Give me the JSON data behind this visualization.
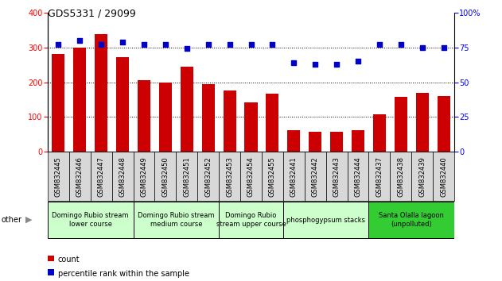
{
  "title": "GDS5331 / 29099",
  "samples": [
    "GSM832445",
    "GSM832446",
    "GSM832447",
    "GSM832448",
    "GSM832449",
    "GSM832450",
    "GSM832451",
    "GSM832452",
    "GSM832453",
    "GSM832454",
    "GSM832455",
    "GSM832441",
    "GSM832442",
    "GSM832443",
    "GSM832444",
    "GSM832437",
    "GSM832438",
    "GSM832439",
    "GSM832440"
  ],
  "counts": [
    280,
    300,
    338,
    272,
    205,
    200,
    245,
    195,
    175,
    143,
    168,
    62,
    58,
    57,
    63,
    108,
    158,
    170,
    160
  ],
  "percentiles": [
    77,
    80,
    77,
    79,
    77,
    77,
    74,
    77,
    77,
    77,
    77,
    64,
    63,
    63,
    65,
    77,
    77,
    75,
    75
  ],
  "groups": [
    {
      "label": "Domingo Rubio stream\nlower course",
      "start": 0,
      "end": 4,
      "color": "#ccffcc"
    },
    {
      "label": "Domingo Rubio stream\nmedium course",
      "start": 4,
      "end": 8,
      "color": "#ccffcc"
    },
    {
      "label": "Domingo Rubio\nstream upper course",
      "start": 8,
      "end": 11,
      "color": "#ccffcc"
    },
    {
      "label": "phosphogypsum stacks",
      "start": 11,
      "end": 15,
      "color": "#ccffcc"
    },
    {
      "label": "Santa Olalla lagoon\n(unpolluted)",
      "start": 15,
      "end": 19,
      "color": "#33cc33"
    }
  ],
  "bar_color": "#cc0000",
  "dot_color": "#0000cc",
  "left_ylim": [
    0,
    400
  ],
  "right_ylim": [
    0,
    100
  ],
  "left_yticks": [
    0,
    100,
    200,
    300,
    400
  ],
  "right_yticks": [
    0,
    25,
    50,
    75,
    100
  ],
  "right_yticklabels": [
    "0",
    "25",
    "50",
    "75",
    "100%"
  ],
  "grid_lines": [
    100,
    200,
    300
  ],
  "bar_width": 0.6,
  "dot_size": 18,
  "tick_fontsize": 7,
  "group_fontsize": 6,
  "legend_fontsize": 7,
  "title_fontsize": 9,
  "sample_fontsize": 6
}
